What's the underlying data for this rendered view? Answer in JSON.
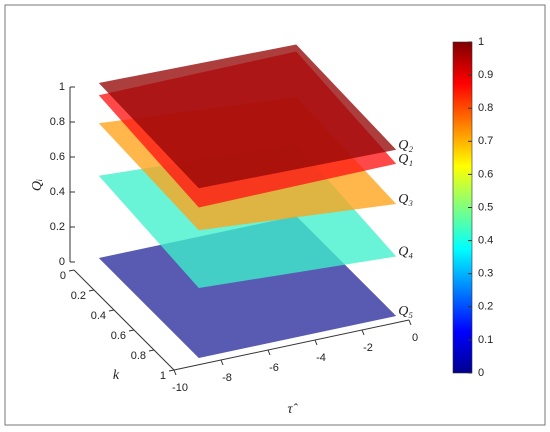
{
  "chart_data": {
    "type": "surface3d",
    "x_label": "τ̂",
    "y_label": "k",
    "z_label": "Qᵢ",
    "x": [
      -9.2,
      -0.8
    ],
    "y": [
      0,
      1
    ],
    "xlim": [
      -10,
      0
    ],
    "xticks": [
      -10,
      -8,
      -6,
      -4,
      -2,
      0
    ],
    "ylim": [
      0,
      1
    ],
    "yticks": [
      0,
      0.2,
      0.4,
      0.6,
      0.8,
      1
    ],
    "zlim": [
      0,
      1
    ],
    "zticks": [
      0,
      0.2,
      0.4,
      0.6,
      0.8,
      1
    ],
    "colorbar": {
      "clim": [
        0,
        1
      ],
      "ticks": [
        0,
        0.1,
        0.2,
        0.3,
        0.4,
        0.5,
        0.6,
        0.7,
        0.8,
        0.9,
        1
      ]
    },
    "series": [
      {
        "name": "Q₅",
        "color": "#2a2d9c",
        "values": [
          [
            0,
            0
          ],
          [
            0,
            0
          ]
        ]
      },
      {
        "name": "Q₄",
        "color": "#3ff0cc",
        "values": [
          [
            0.47,
            0.41
          ],
          [
            0.4,
            0.34
          ]
        ]
      },
      {
        "name": "Q₃",
        "color": "#ffa319",
        "values": [
          [
            0.77,
            0.68
          ],
          [
            0.73,
            0.64
          ]
        ]
      },
      {
        "name": "Q₁",
        "color": "#ff1414",
        "values": [
          [
            0.93,
            0.94
          ],
          [
            0.86,
            0.87
          ]
        ]
      },
      {
        "name": "Q₂",
        "color": "#960808",
        "values": [
          [
            1.0,
            0.98
          ],
          [
            0.97,
            0.95
          ]
        ]
      }
    ]
  }
}
